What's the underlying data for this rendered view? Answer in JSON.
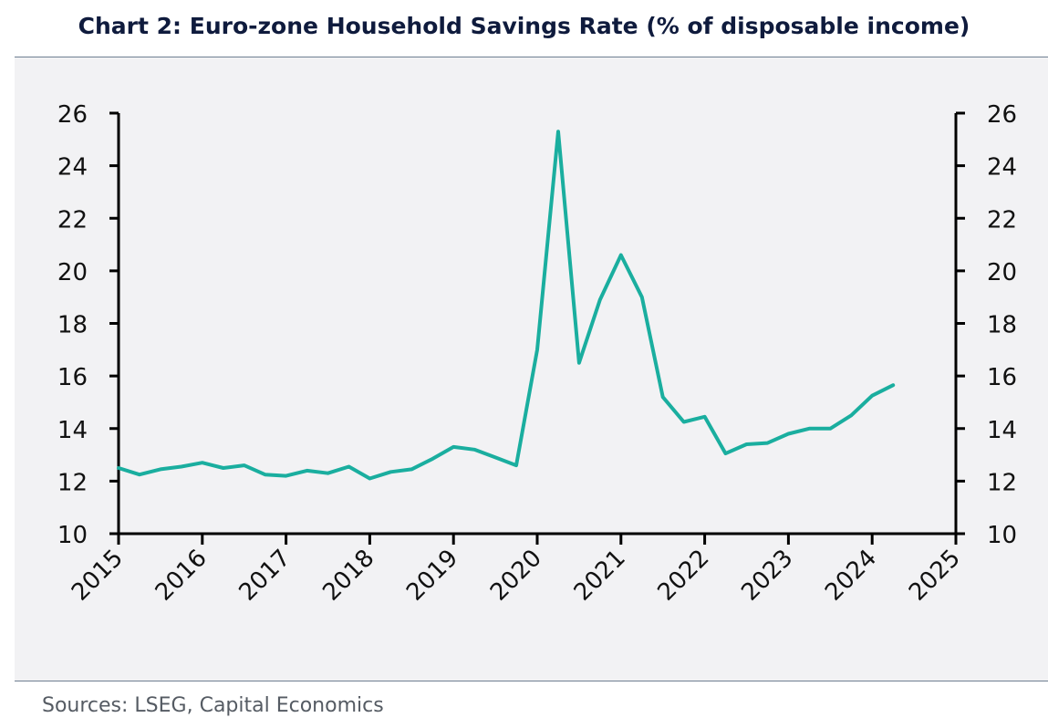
{
  "title": "Chart 2: Euro-zone Household Savings Rate (% of disposable income)",
  "source": "Sources: LSEG, Capital Economics",
  "colors": {
    "line": "#1aae9f",
    "axis": "#000000",
    "panel": "#f2f2f4",
    "title": "#0f1b3d"
  },
  "chart_data": {
    "type": "line",
    "xlim": [
      2015,
      2025
    ],
    "ylim": [
      10,
      26
    ],
    "y_ticks": [
      "10",
      "12",
      "14",
      "16",
      "18",
      "20",
      "22",
      "24",
      "26"
    ],
    "x_ticks": [
      "2015",
      "2016",
      "2017",
      "2018",
      "2019",
      "2020",
      "2021",
      "2022",
      "2023",
      "2024",
      "2025"
    ],
    "right_axis": true,
    "grid": false,
    "series": [
      {
        "x": [
          2015.0,
          2015.25,
          2015.5,
          2015.75,
          2016.0,
          2016.25,
          2016.5,
          2016.75,
          2017.0,
          2017.25,
          2017.5,
          2017.75,
          2018.0,
          2018.25,
          2018.5,
          2018.75,
          2019.0,
          2019.25,
          2019.5,
          2019.75,
          2020.0,
          2020.25,
          2020.5,
          2020.75,
          2021.0,
          2021.25,
          2021.5,
          2021.75,
          2022.0,
          2022.25,
          2022.5,
          2022.75,
          2023.0,
          2023.25,
          2023.5,
          2023.75,
          2024.0,
          2024.25
        ],
        "y": [
          12.5,
          12.25,
          12.45,
          12.55,
          12.7,
          12.5,
          12.6,
          12.25,
          12.2,
          12.4,
          12.3,
          12.55,
          12.1,
          12.35,
          12.45,
          12.85,
          13.3,
          13.2,
          12.9,
          12.6,
          17.0,
          25.3,
          16.5,
          18.9,
          20.6,
          19.0,
          15.2,
          14.25,
          14.45,
          13.05,
          13.4,
          13.45,
          13.8,
          14.0,
          14.0,
          14.5,
          15.25,
          15.65
        ]
      }
    ]
  }
}
